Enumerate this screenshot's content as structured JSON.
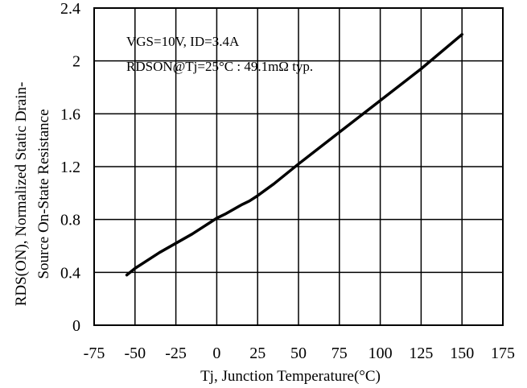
{
  "chart_data": {
    "type": "line",
    "title": "",
    "xlabel": "Tj, Junction Temperature(°C)",
    "ylabel_line1": "RDS(ON), Normalized Static Drain-",
    "ylabel_line2": "Source On-State Resistance",
    "xlim": [
      -75,
      175
    ],
    "ylim": [
      0,
      2.4
    ],
    "xticks": [
      "-75",
      "-50",
      "-25",
      "0",
      "25",
      "50",
      "75",
      "100",
      "125",
      "150",
      "175"
    ],
    "yticks": [
      "0",
      "0.4",
      "0.8",
      "1.2",
      "1.6",
      "2",
      "2.4"
    ],
    "grid": true,
    "annotations": [
      "VGS=10V, ID=3.4A",
      "RDSON@Tj=25°C : 49.1mΩ   typ."
    ],
    "series": [
      {
        "color": "#000000",
        "x": [
          -55,
          -50,
          -45,
          -35,
          -25,
          -15,
          -5,
          0,
          5,
          15,
          20,
          25,
          35,
          50,
          75,
          100,
          125,
          150
        ],
        "y": [
          0.38,
          0.43,
          0.47,
          0.55,
          0.62,
          0.69,
          0.77,
          0.81,
          0.84,
          0.91,
          0.94,
          0.98,
          1.07,
          1.22,
          1.46,
          1.7,
          1.94,
          2.2
        ]
      }
    ]
  }
}
